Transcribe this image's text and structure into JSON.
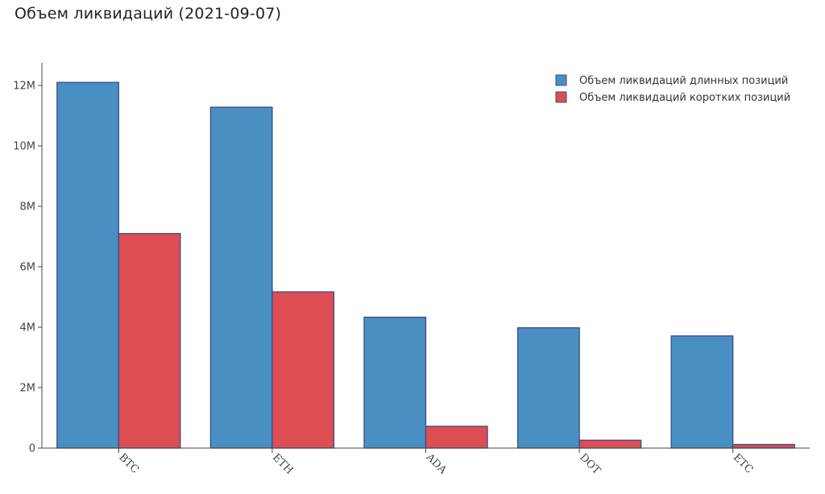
{
  "chart_title": "Объем ликвидаций (2021-09-07)",
  "chart_data": {
    "type": "bar",
    "title": "Объем ликвидаций (2021-09-07)",
    "categories": [
      "BTC",
      "ETH",
      "ADA",
      "DOT",
      "ETC"
    ],
    "series": [
      {
        "name": "Объем ликвидаций длинных позиций",
        "color": "#4A8FC1",
        "values": [
          12100000,
          11280000,
          4330000,
          3980000,
          3710000
        ]
      },
      {
        "name": "Объем ликвидаций коротких позиций",
        "color": "#DC4E52",
        "values": [
          7100000,
          5170000,
          720000,
          260000,
          120000
        ]
      }
    ],
    "y_ticks": [
      0,
      2000000,
      4000000,
      6000000,
      8000000,
      10000000,
      12000000
    ],
    "y_tick_labels": [
      "0",
      "2M",
      "4M",
      "6M",
      "8M",
      "10M",
      "12M"
    ],
    "ylim": [
      0,
      12800000
    ],
    "xlabel": "",
    "ylabel": "",
    "legend_position": "top-right",
    "grid": false,
    "x_tick_rotation": "rotated 45 degrees",
    "bar_outline_color": "#3A4B8C"
  }
}
